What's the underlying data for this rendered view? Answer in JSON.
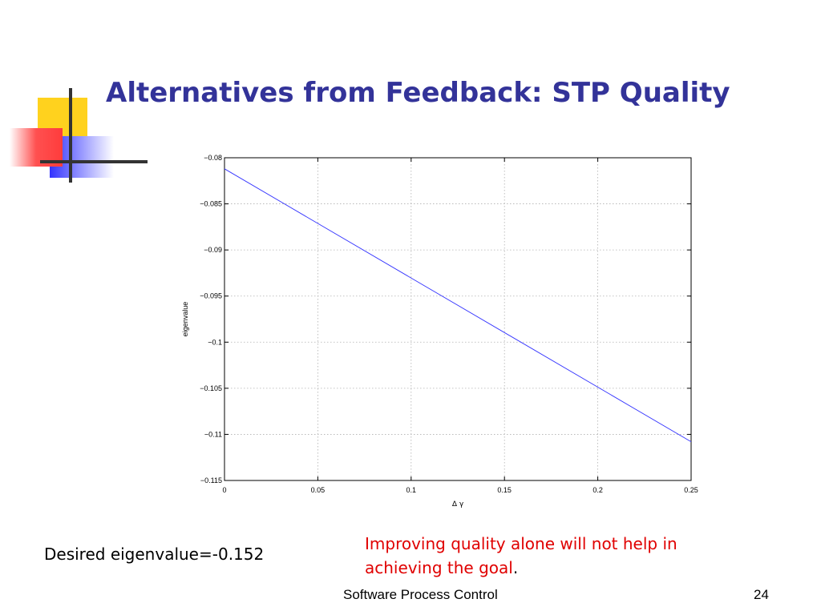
{
  "slide": {
    "title": "Alternatives from Feedback: STP Quality",
    "left_note": "Desired eigenvalue=-0.152",
    "right_note_main": "Improving quality alone will not help in achieving the goal",
    "right_note_end": ".",
    "footer": "Software Process Control",
    "page_number": "24"
  },
  "colors": {
    "title": "#333399",
    "note_red": "#e00000",
    "line": "#3333ff",
    "logo_yellow": "#ffd21e",
    "logo_blue": "#3333ff",
    "logo_red": "#ff3c3c"
  },
  "chart_data": {
    "type": "line",
    "xlabel": "Δ γ",
    "ylabel": "eigenvalue",
    "xlim": [
      0,
      0.25
    ],
    "ylim": [
      -0.115,
      -0.08
    ],
    "xticks": [
      0,
      0.05,
      0.1,
      0.15,
      0.2,
      0.25
    ],
    "xtick_labels": [
      "0",
      "0.05",
      "0.1",
      "0.15",
      "0.2",
      "0.25"
    ],
    "yticks": [
      -0.08,
      -0.085,
      -0.09,
      -0.095,
      -0.1,
      -0.105,
      -0.11,
      -0.115
    ],
    "ytick_labels": [
      "−0.08",
      "−0.085",
      "−0.09",
      "−0.095",
      "−0.1",
      "−0.105",
      "−0.11",
      "−0.115"
    ],
    "grid": true,
    "series": [
      {
        "x": [
          0,
          0.25
        ],
        "y": [
          -0.0812,
          -0.1108
        ]
      }
    ]
  }
}
